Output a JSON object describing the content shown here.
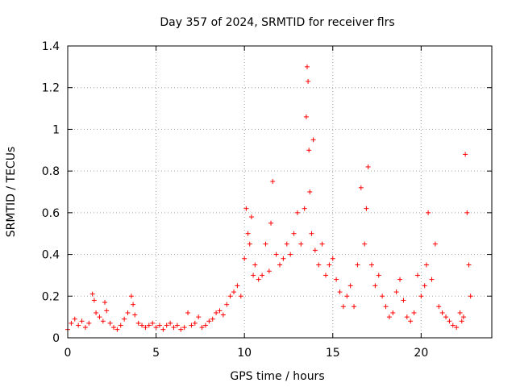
{
  "chart_data": {
    "type": "scatter",
    "title": "Day 357 of 2024, SRMTID for receiver flrs",
    "xlabel": "GPS time / hours",
    "ylabel": "SRMTID / TECUs",
    "xlim": [
      0,
      24
    ],
    "ylim": [
      0,
      1.4
    ],
    "xticks": [
      0,
      5,
      10,
      15,
      20
    ],
    "xtick_labels": [
      "0",
      "5",
      "10",
      "15",
      "20"
    ],
    "yticks": [
      0,
      0.2,
      0.4,
      0.6,
      0.8,
      1.0,
      1.2,
      1.4
    ],
    "ytick_labels": [
      "0",
      "0.2",
      "0.4",
      "0.6",
      "0.8",
      "1",
      "1.2",
      "1.4"
    ],
    "grid": true,
    "marker": "plus",
    "color": "#ff0000",
    "series": [
      {
        "name": "SRMTID",
        "x": [
          0.0,
          0.2,
          0.4,
          0.6,
          0.8,
          1.0,
          1.2,
          1.4,
          1.5,
          1.6,
          1.8,
          2.0,
          2.1,
          2.2,
          2.4,
          2.6,
          2.8,
          3.0,
          3.2,
          3.4,
          3.6,
          3.7,
          3.8,
          4.0,
          4.2,
          4.4,
          4.6,
          4.8,
          5.0,
          5.2,
          5.4,
          5.6,
          5.8,
          6.0,
          6.2,
          6.4,
          6.6,
          6.8,
          7.0,
          7.2,
          7.4,
          7.6,
          7.8,
          8.0,
          8.2,
          8.4,
          8.6,
          8.8,
          9.0,
          9.2,
          9.4,
          9.6,
          9.8,
          10.0,
          10.1,
          10.2,
          10.3,
          10.4,
          10.5,
          10.6,
          10.8,
          11.0,
          11.2,
          11.4,
          11.5,
          11.6,
          11.8,
          12.0,
          12.2,
          12.4,
          12.6,
          12.8,
          13.0,
          13.2,
          13.4,
          13.5,
          13.55,
          13.6,
          13.65,
          13.7,
          13.8,
          13.9,
          14.0,
          14.2,
          14.4,
          14.6,
          14.8,
          15.0,
          15.2,
          15.4,
          15.6,
          15.8,
          16.0,
          16.2,
          16.4,
          16.6,
          16.8,
          16.9,
          17.0,
          17.2,
          17.4,
          17.6,
          17.8,
          18.0,
          18.2,
          18.4,
          18.6,
          18.8,
          19.0,
          19.2,
          19.4,
          19.6,
          19.8,
          20.0,
          20.2,
          20.3,
          20.4,
          20.6,
          20.8,
          21.0,
          21.2,
          21.4,
          21.6,
          21.8,
          22.0,
          22.2,
          22.3,
          22.4,
          22.5,
          22.6,
          22.7,
          22.8
        ],
        "y": [
          0.04,
          0.07,
          0.09,
          0.06,
          0.08,
          0.05,
          0.07,
          0.21,
          0.18,
          0.12,
          0.1,
          0.08,
          0.17,
          0.13,
          0.07,
          0.05,
          0.04,
          0.06,
          0.09,
          0.12,
          0.2,
          0.16,
          0.11,
          0.07,
          0.06,
          0.05,
          0.06,
          0.07,
          0.05,
          0.06,
          0.04,
          0.06,
          0.07,
          0.05,
          0.06,
          0.04,
          0.05,
          0.12,
          0.06,
          0.07,
          0.1,
          0.05,
          0.06,
          0.08,
          0.09,
          0.12,
          0.13,
          0.11,
          0.16,
          0.2,
          0.22,
          0.25,
          0.2,
          0.38,
          0.62,
          0.5,
          0.45,
          0.58,
          0.3,
          0.35,
          0.28,
          0.3,
          0.45,
          0.32,
          0.55,
          0.75,
          0.4,
          0.35,
          0.38,
          0.45,
          0.4,
          0.5,
          0.6,
          0.45,
          0.62,
          1.06,
          1.3,
          1.23,
          0.9,
          0.7,
          0.5,
          0.95,
          0.42,
          0.35,
          0.45,
          0.3,
          0.35,
          0.38,
          0.28,
          0.22,
          0.15,
          0.2,
          0.25,
          0.15,
          0.35,
          0.72,
          0.45,
          0.62,
          0.82,
          0.35,
          0.25,
          0.3,
          0.2,
          0.15,
          0.1,
          0.12,
          0.22,
          0.28,
          0.18,
          0.1,
          0.08,
          0.12,
          0.3,
          0.2,
          0.25,
          0.35,
          0.6,
          0.28,
          0.45,
          0.15,
          0.12,
          0.1,
          0.08,
          0.06,
          0.05,
          0.12,
          0.08,
          0.1,
          0.88,
          0.6,
          0.35,
          0.2
        ]
      }
    ]
  }
}
